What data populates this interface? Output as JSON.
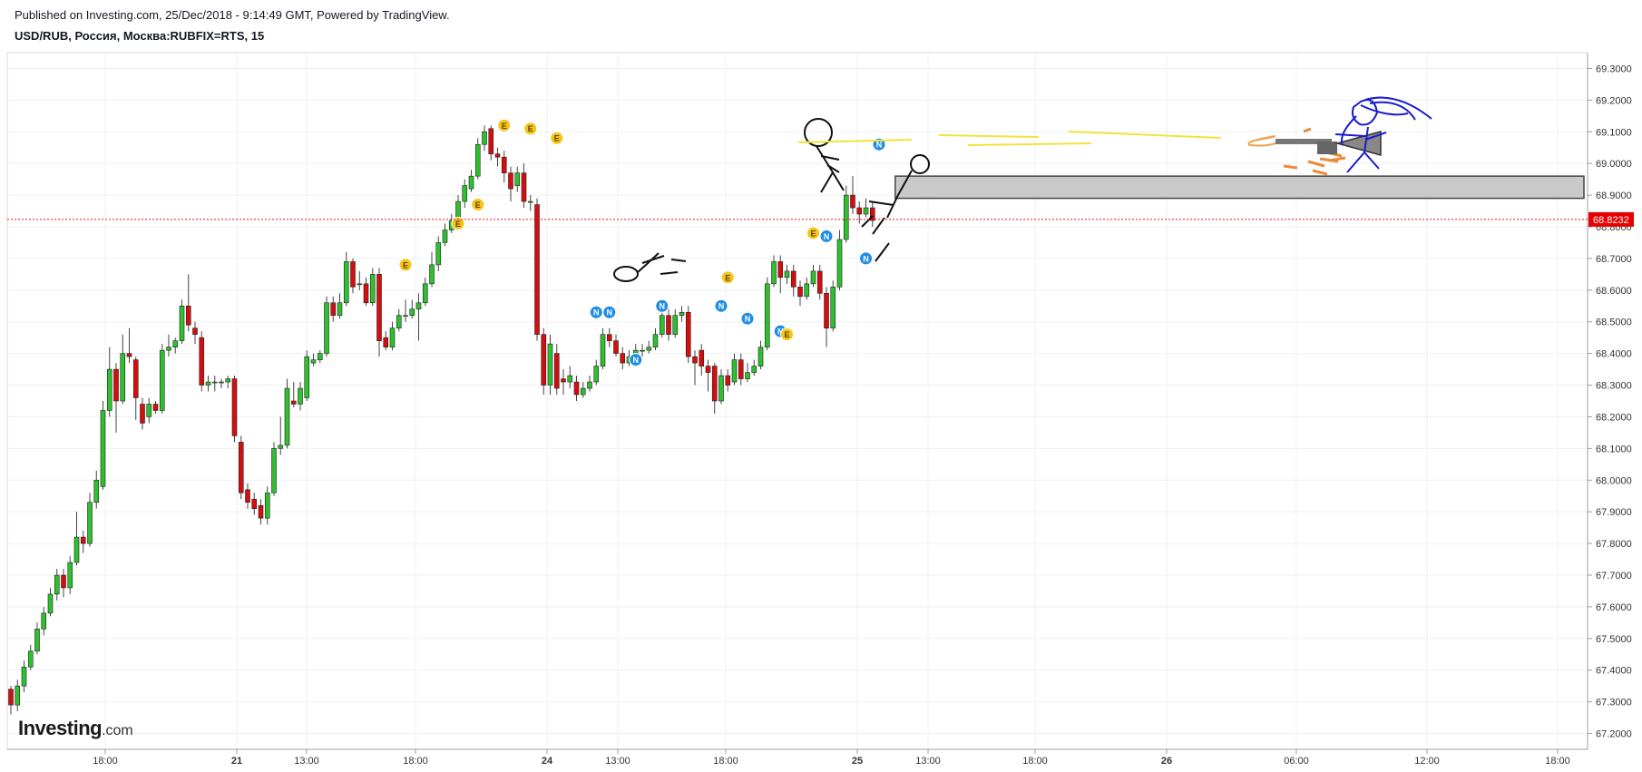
{
  "header": {
    "published": "Published on Investing.com, 25/Dec/2018 - 9:14:49 GMT, Powered by TradingView.",
    "symbol": "USD/RUB, Россия, Москва:RUBFIX=RTS, 15"
  },
  "logo": {
    "word": "Investing",
    "suffix": ".com"
  },
  "colors": {
    "up": "#2ec02e",
    "down": "#d40e0e",
    "wick": "#444444",
    "grid": "#eef0f3",
    "price_line": "#ee1111",
    "badge_e": "#f5c518",
    "badge_n": "#1e8de6"
  },
  "chart_data": {
    "type": "candlestick",
    "ylim": [
      67.15,
      69.35
    ],
    "y_ticks": [
      "69.3000",
      "69.2000",
      "69.1000",
      "69.0000",
      "68.9000",
      "68.8000",
      "68.7000",
      "68.6000",
      "68.5000",
      "68.4000",
      "68.3000",
      "68.2000",
      "68.1000",
      "68.0000",
      "67.9000",
      "67.8000",
      "67.7000",
      "67.6000",
      "67.5000",
      "67.4000",
      "67.3000",
      "67.2000"
    ],
    "x_ticks": [
      {
        "label": "18:00",
        "bold": false
      },
      {
        "label": "21",
        "bold": true
      },
      {
        "label": "13:00",
        "bold": false
      },
      {
        "label": "18:00",
        "bold": false
      },
      {
        "label": "24",
        "bold": true
      },
      {
        "label": "13:00",
        "bold": false
      },
      {
        "label": "18:00",
        "bold": false
      },
      {
        "label": "25",
        "bold": true
      },
      {
        "label": "13:00",
        "bold": false
      },
      {
        "label": "18:00",
        "bold": false
      },
      {
        "label": "26",
        "bold": true
      },
      {
        "label": "06:00",
        "bold": false
      },
      {
        "label": "12:00",
        "bold": false
      },
      {
        "label": "18:00",
        "bold": false
      }
    ],
    "last_price": 68.8232,
    "last_price_label": "68.8232",
    "candles": [
      [
        67.34,
        67.29,
        67.35,
        67.26
      ],
      [
        67.29,
        67.35,
        67.37,
        67.27
      ],
      [
        67.35,
        67.41,
        67.43,
        67.33
      ],
      [
        67.41,
        67.46,
        67.48,
        67.4
      ],
      [
        67.46,
        67.53,
        67.55,
        67.45
      ],
      [
        67.53,
        67.58,
        67.6,
        67.51
      ],
      [
        67.58,
        67.64,
        67.66,
        67.57
      ],
      [
        67.64,
        67.7,
        67.72,
        67.62
      ],
      [
        67.7,
        67.66,
        67.72,
        67.63
      ],
      [
        67.66,
        67.74,
        67.76,
        67.64
      ],
      [
        67.74,
        67.82,
        67.9,
        67.73
      ],
      [
        67.82,
        67.8,
        67.84,
        67.77
      ],
      [
        67.8,
        67.93,
        67.96,
        67.79
      ],
      [
        67.93,
        68.0,
        68.03,
        67.91
      ],
      [
        67.98,
        68.22,
        68.25,
        67.97
      ],
      [
        68.22,
        68.35,
        68.42,
        68.2
      ],
      [
        68.35,
        68.25,
        68.37,
        68.15
      ],
      [
        68.25,
        68.4,
        68.46,
        68.24
      ],
      [
        68.4,
        68.39,
        68.48,
        68.37
      ],
      [
        68.38,
        68.26,
        68.39,
        68.19
      ],
      [
        68.24,
        68.18,
        68.26,
        68.16
      ],
      [
        68.2,
        68.24,
        68.26,
        68.18
      ],
      [
        68.24,
        68.22,
        68.25,
        68.21
      ],
      [
        68.22,
        68.41,
        68.43,
        68.21
      ],
      [
        68.41,
        68.42,
        68.46,
        68.39
      ],
      [
        68.42,
        68.44,
        68.45,
        68.4
      ],
      [
        68.44,
        68.55,
        68.57,
        68.43
      ],
      [
        68.55,
        68.49,
        68.65,
        68.47
      ],
      [
        68.48,
        68.46,
        68.5,
        68.43
      ],
      [
        68.45,
        68.3,
        68.47,
        68.28
      ],
      [
        68.3,
        68.31,
        68.33,
        68.28
      ],
      [
        68.31,
        68.31,
        68.33,
        68.28
      ],
      [
        68.31,
        68.31,
        68.32,
        68.29
      ],
      [
        68.31,
        68.32,
        68.33,
        68.29
      ],
      [
        68.32,
        68.14,
        68.33,
        68.12
      ],
      [
        68.12,
        67.96,
        68.14,
        67.94
      ],
      [
        67.97,
        67.93,
        67.99,
        67.91
      ],
      [
        67.94,
        67.91,
        67.96,
        67.89
      ],
      [
        67.92,
        67.88,
        67.94,
        67.86
      ],
      [
        67.88,
        67.96,
        67.98,
        67.86
      ],
      [
        67.96,
        68.1,
        68.12,
        67.95
      ],
      [
        68.1,
        68.11,
        68.2,
        68.08
      ],
      [
        68.11,
        68.29,
        68.32,
        68.1
      ],
      [
        68.25,
        68.24,
        68.31,
        68.23
      ],
      [
        68.24,
        68.29,
        68.31,
        68.22
      ],
      [
        68.26,
        68.39,
        68.41,
        68.25
      ],
      [
        68.37,
        68.38,
        68.4,
        68.36
      ],
      [
        68.38,
        68.4,
        68.41,
        68.37
      ],
      [
        68.4,
        68.56,
        68.58,
        68.39
      ],
      [
        68.56,
        68.52,
        68.58,
        68.5
      ],
      [
        68.52,
        68.56,
        68.59,
        68.51
      ],
      [
        68.56,
        68.69,
        68.72,
        68.55
      ],
      [
        68.69,
        68.61,
        68.7,
        68.59
      ],
      [
        68.62,
        68.62,
        68.66,
        68.6
      ],
      [
        68.62,
        68.56,
        68.64,
        68.55
      ],
      [
        68.56,
        68.65,
        68.67,
        68.55
      ],
      [
        68.65,
        68.44,
        68.67,
        68.39
      ],
      [
        68.45,
        68.42,
        68.47,
        68.41
      ],
      [
        68.42,
        68.48,
        68.5,
        68.41
      ],
      [
        68.48,
        68.52,
        68.54,
        68.47
      ],
      [
        68.52,
        68.52,
        68.57,
        68.5
      ],
      [
        68.52,
        68.54,
        68.57,
        68.51
      ],
      [
        68.54,
        68.56,
        68.59,
        68.44
      ],
      [
        68.56,
        68.62,
        68.64,
        68.55
      ],
      [
        68.62,
        68.68,
        68.72,
        68.61
      ],
      [
        68.68,
        68.75,
        68.77,
        68.66
      ],
      [
        68.75,
        68.79,
        68.81,
        68.74
      ],
      [
        68.79,
        68.82,
        68.84,
        68.78
      ],
      [
        68.83,
        68.88,
        68.9,
        68.82
      ],
      [
        68.88,
        68.93,
        68.95,
        68.86
      ],
      [
        68.92,
        68.96,
        68.98,
        68.91
      ],
      [
        68.96,
        69.06,
        69.08,
        68.95
      ],
      [
        69.06,
        69.1,
        69.12,
        69.04
      ],
      [
        69.11,
        69.03,
        69.12,
        69.01
      ],
      [
        69.03,
        69.02,
        69.05,
        68.99
      ],
      [
        69.02,
        68.97,
        69.04,
        68.94
      ],
      [
        68.97,
        68.92,
        68.99,
        68.88
      ],
      [
        68.93,
        68.97,
        68.99,
        68.91
      ],
      [
        68.97,
        68.88,
        69.0,
        68.86
      ],
      [
        68.88,
        68.88,
        68.9,
        68.85
      ],
      [
        68.87,
        68.46,
        68.89,
        68.44
      ],
      [
        68.46,
        68.3,
        68.48,
        68.27
      ],
      [
        68.3,
        68.43,
        68.46,
        68.27
      ],
      [
        68.4,
        68.29,
        68.43,
        68.27
      ],
      [
        68.32,
        68.31,
        68.35,
        68.27
      ],
      [
        68.31,
        68.33,
        68.36,
        68.29
      ],
      [
        68.31,
        68.27,
        68.33,
        68.25
      ],
      [
        68.27,
        68.29,
        68.31,
        68.26
      ],
      [
        68.29,
        68.31,
        68.33,
        68.28
      ],
      [
        68.31,
        68.36,
        68.38,
        68.3
      ],
      [
        68.36,
        68.46,
        68.48,
        68.35
      ],
      [
        68.46,
        68.44,
        68.48,
        68.42
      ],
      [
        68.44,
        68.4,
        68.46,
        68.39
      ],
      [
        68.4,
        68.37,
        68.42,
        68.35
      ],
      [
        68.37,
        68.39,
        68.41,
        68.36
      ],
      [
        68.39,
        68.41,
        68.43,
        68.38
      ],
      [
        68.41,
        68.41,
        68.43,
        68.39
      ],
      [
        68.41,
        68.42,
        68.44,
        68.4
      ],
      [
        68.42,
        68.46,
        68.48,
        68.41
      ],
      [
        68.46,
        68.52,
        68.54,
        68.45
      ],
      [
        68.52,
        68.46,
        68.54,
        68.44
      ],
      [
        68.46,
        68.52,
        68.54,
        68.45
      ],
      [
        68.52,
        68.53,
        68.55,
        68.5
      ],
      [
        68.53,
        68.39,
        68.55,
        68.37
      ],
      [
        68.39,
        68.37,
        68.41,
        68.3
      ],
      [
        68.41,
        68.36,
        68.43,
        68.33
      ],
      [
        68.36,
        68.34,
        68.38,
        68.28
      ],
      [
        68.36,
        68.25,
        68.37,
        68.21
      ],
      [
        68.25,
        68.33,
        68.35,
        68.24
      ],
      [
        68.33,
        68.3,
        68.35,
        68.28
      ],
      [
        68.31,
        68.38,
        68.4,
        68.3
      ],
      [
        68.38,
        68.32,
        68.4,
        68.3
      ],
      [
        68.32,
        68.34,
        68.37,
        68.31
      ],
      [
        68.34,
        68.36,
        68.38,
        68.33
      ],
      [
        68.36,
        68.42,
        68.44,
        68.35
      ],
      [
        68.42,
        68.62,
        68.64,
        68.41
      ],
      [
        68.62,
        68.69,
        68.71,
        68.61
      ],
      [
        68.69,
        68.64,
        68.71,
        68.59
      ],
      [
        68.64,
        68.66,
        68.68,
        68.62
      ],
      [
        68.66,
        68.61,
        68.68,
        68.58
      ],
      [
        68.61,
        68.58,
        68.63,
        68.55
      ],
      [
        68.58,
        68.62,
        68.64,
        68.57
      ],
      [
        68.62,
        68.66,
        68.68,
        68.61
      ],
      [
        68.66,
        68.59,
        68.68,
        68.57
      ],
      [
        68.59,
        68.48,
        68.61,
        68.42
      ],
      [
        68.48,
        68.61,
        68.63,
        68.47
      ],
      [
        68.61,
        68.76,
        68.79,
        68.6
      ],
      [
        68.76,
        68.9,
        68.93,
        68.75
      ],
      [
        68.9,
        68.86,
        68.96,
        68.84
      ],
      [
        68.86,
        68.84,
        68.88,
        68.81
      ],
      [
        68.84,
        68.86,
        68.89,
        68.83
      ],
      [
        68.86,
        68.82,
        68.88,
        68.8
      ]
    ],
    "events": [
      {
        "type": "E",
        "idx": 60,
        "price": 68.64
      },
      {
        "type": "E",
        "idx": 68,
        "price": 68.77
      },
      {
        "type": "E",
        "idx": 71,
        "price": 68.83
      },
      {
        "type": "E",
        "idx": 75,
        "price": 69.08
      },
      {
        "type": "E",
        "idx": 79,
        "price": 69.07
      },
      {
        "type": "E",
        "idx": 83,
        "price": 69.04
      },
      {
        "type": "N",
        "idx": 89,
        "price": 68.49
      },
      {
        "type": "N",
        "idx": 91,
        "price": 68.49
      },
      {
        "type": "N",
        "idx": 95,
        "price": 68.34
      },
      {
        "type": "N",
        "idx": 99,
        "price": 68.51
      },
      {
        "type": "N",
        "idx": 108,
        "price": 68.51
      },
      {
        "type": "E",
        "idx": 109,
        "price": 68.6
      },
      {
        "type": "N",
        "idx": 112,
        "price": 68.47
      },
      {
        "type": "N",
        "idx": 117,
        "price": 68.43
      },
      {
        "type": "E",
        "idx": 118,
        "price": 68.42
      },
      {
        "type": "E",
        "idx": 122,
        "price": 68.74
      },
      {
        "type": "N",
        "idx": 124,
        "price": 68.73
      },
      {
        "type": "N",
        "idx": 130,
        "price": 68.66
      },
      {
        "type": "N",
        "idx": 132,
        "price": 69.02
      }
    ],
    "zone": {
      "from_idx": 135,
      "price_high": 68.96,
      "price_low": 68.89
    }
  }
}
